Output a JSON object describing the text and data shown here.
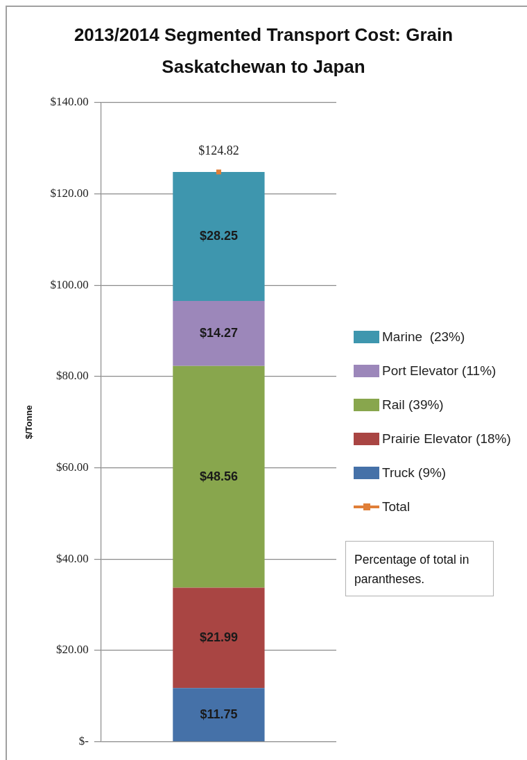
{
  "chart_data": {
    "type": "bar",
    "title": "2013/2014 Segmented Transport Cost: Grain Saskatchewan to Japan",
    "ylabel": "$/Tonne",
    "categories": [
      null
    ],
    "stacked": true,
    "series": [
      {
        "name": "Truck (9%)",
        "color": "#4571a8",
        "values": [
          11.75
        ],
        "value_labels": [
          "$11.75"
        ]
      },
      {
        "name": "Prairie Elevator (18%)",
        "color": "#a94543",
        "values": [
          21.99
        ],
        "value_labels": [
          "$21.99"
        ]
      },
      {
        "name": "Rail (39%)",
        "color": "#88a64d",
        "values": [
          48.56
        ],
        "value_labels": [
          "$48.56"
        ]
      },
      {
        "name": "Port Elevator (11%)",
        "color": "#9c87ba",
        "values": [
          14.27
        ],
        "value_labels": [
          "$14.27"
        ]
      },
      {
        "name": "Marine  (23%)",
        "color": "#3e96ae",
        "values": [
          28.25
        ],
        "value_labels": [
          "$28.25"
        ]
      },
      {
        "name": "Total",
        "type": "line",
        "color": "#e07f38",
        "marker": "square",
        "values": [
          124.82
        ],
        "value_labels": [
          "$124.82"
        ]
      }
    ],
    "ylim": [
      0,
      140
    ],
    "yticks": [
      {
        "value": 0,
        "label": "$-"
      },
      {
        "value": 20,
        "label": "$20.00"
      },
      {
        "value": 40,
        "label": "$40.00"
      },
      {
        "value": 60,
        "label": "$60.00"
      },
      {
        "value": 80,
        "label": "$80.00"
      },
      {
        "value": 100,
        "label": "$100.00"
      },
      {
        "value": 120,
        "label": "$120.00"
      },
      {
        "value": 140,
        "label": "$140.00"
      }
    ],
    "grid": "y",
    "legend": "right",
    "annotations": [
      "Percentage of total in parantheses."
    ]
  }
}
